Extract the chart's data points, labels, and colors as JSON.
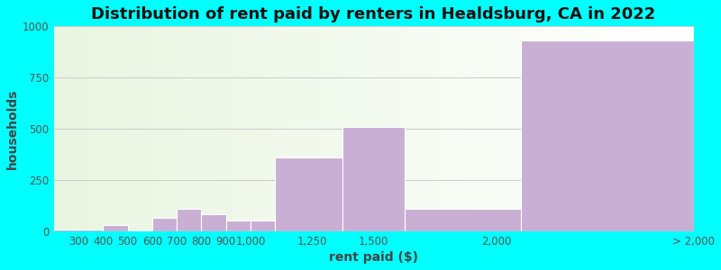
{
  "title": "Distribution of rent paid by renters in Healdsburg, CA in 2022",
  "xlabel": "rent paid ($)",
  "ylabel": "households",
  "background_color": "#00ffff",
  "bar_color": "#c9afd4",
  "bar_edge_color": "#ffffff",
  "bin_edges": [
    200,
    400,
    500,
    600,
    700,
    800,
    900,
    1000,
    1100,
    1375,
    1625,
    2100,
    2800
  ],
  "values": [
    10,
    30,
    5,
    65,
    110,
    85,
    55,
    55,
    360,
    510,
    110,
    930
  ],
  "xtick_positions": [
    300,
    400,
    500,
    600,
    700,
    800,
    900,
    1000,
    1250,
    1500,
    2000,
    2800
  ],
  "xtick_labels": [
    "300",
    "400",
    "500",
    "600",
    "700",
    "800",
    "900",
    "1,000",
    "1,250",
    "1,500",
    "2,000",
    "> 2,000"
  ],
  "ylim": [
    0,
    1000
  ],
  "yticks": [
    0,
    250,
    500,
    750,
    1000
  ],
  "grid_color": "#cccccc",
  "title_fontsize": 13,
  "axis_label_fontsize": 10,
  "tick_fontsize": 8.5
}
